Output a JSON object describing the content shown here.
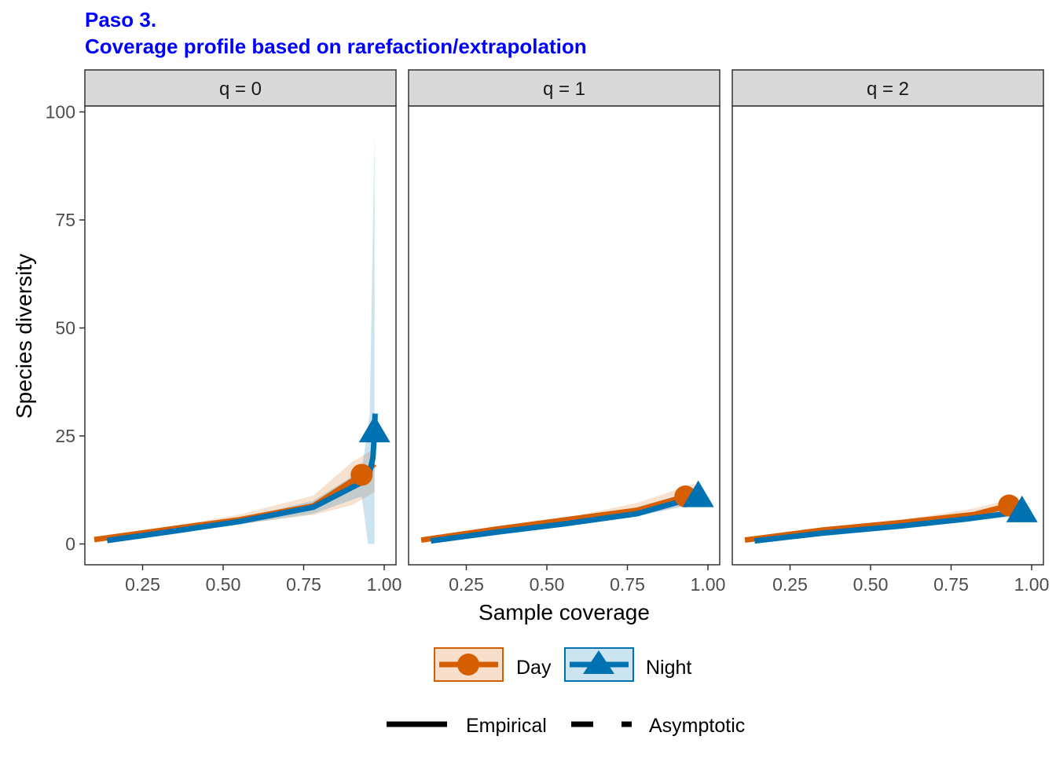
{
  "title_line1": "Paso 3.",
  "title_line2": "Coverage profile based on rarefaction/extrapolation",
  "colors": {
    "title": "#0000FF",
    "day": "#D55E00",
    "night": "#0072B2",
    "strip_fill": "#D9D9D9"
  },
  "chart_data": {
    "type": "line",
    "xlabel": "Sample coverage",
    "ylabel": "Species diversity",
    "xlim": [
      0.1,
      1.0
    ],
    "ylim": [
      0,
      100
    ],
    "x_ticks": [
      "0.25",
      "0.50",
      "0.75",
      "1.00"
    ],
    "y_ticks": [
      "0",
      "25",
      "50",
      "75",
      "100"
    ],
    "legend_position": "bottom",
    "grid": false,
    "legend": {
      "series": [
        "Day",
        "Night"
      ],
      "methods": [
        "Empirical",
        "Asymptotic"
      ]
    },
    "facets": [
      {
        "strip": "q = 0",
        "series": [
          {
            "name": "Day",
            "interpolated": [
              [
                0.1,
                1
              ],
              [
                0.35,
                3.6
              ],
              [
                0.55,
                5.6
              ],
              [
                0.78,
                8.8
              ],
              [
                0.93,
                16
              ]
            ],
            "extrapolated": [
              [
                0.93,
                16
              ],
              [
                0.97,
                18.5
              ]
            ],
            "ci_lower": [
              [
                0.1,
                0.6
              ],
              [
                0.35,
                3.0
              ],
              [
                0.55,
                4.6
              ],
              [
                0.78,
                6.7
              ],
              [
                0.9,
                9
              ],
              [
                0.97,
                12
              ]
            ],
            "ci_upper": [
              [
                0.1,
                1.4
              ],
              [
                0.35,
                4.2
              ],
              [
                0.55,
                6.8
              ],
              [
                0.78,
                11.2
              ],
              [
                0.9,
                19
              ],
              [
                0.97,
                22
              ]
            ],
            "observed": [
              0.93,
              16
            ],
            "marker": "circle"
          },
          {
            "name": "Night",
            "interpolated": [
              [
                0.14,
                0.8
              ],
              [
                0.35,
                3.0
              ],
              [
                0.55,
                5.2
              ],
              [
                0.78,
                8.5
              ],
              [
                0.95,
                15
              ],
              [
                0.965,
                20
              ],
              [
                0.97,
                26
              ]
            ],
            "extrapolated": [
              [
                0.97,
                26
              ],
              [
                0.972,
                31
              ]
            ],
            "ci_lower": [
              [
                0.14,
                0.5
              ],
              [
                0.55,
                4.5
              ],
              [
                0.78,
                7.0
              ],
              [
                0.93,
                11
              ],
              [
                0.95,
                0
              ],
              [
                0.97,
                0
              ]
            ],
            "ci_upper": [
              [
                0.14,
                1.1
              ],
              [
                0.55,
                5.9
              ],
              [
                0.78,
                10
              ],
              [
                0.93,
                17
              ],
              [
                0.955,
                30
              ],
              [
                0.97,
                95
              ]
            ],
            "observed": [
              0.97,
              26
            ],
            "marker": "triangle"
          }
        ]
      },
      {
        "strip": "q = 1",
        "series": [
          {
            "name": "Day",
            "interpolated": [
              [
                0.11,
                0.9
              ],
              [
                0.35,
                3.5
              ],
              [
                0.6,
                6.0
              ],
              [
                0.78,
                7.8
              ],
              [
                0.93,
                11
              ]
            ],
            "extrapolated": [
              [
                0.93,
                11
              ],
              [
                0.96,
                12
              ]
            ],
            "ci_lower": [
              [
                0.11,
                0.6
              ],
              [
                0.6,
                5.4
              ],
              [
                0.78,
                6.5
              ],
              [
                0.96,
                9.5
              ]
            ],
            "ci_upper": [
              [
                0.11,
                1.2
              ],
              [
                0.6,
                6.7
              ],
              [
                0.78,
                9.5
              ],
              [
                0.96,
                14
              ]
            ],
            "observed": [
              0.93,
              11
            ],
            "marker": "circle"
          },
          {
            "name": "Night",
            "interpolated": [
              [
                0.14,
                0.7
              ],
              [
                0.35,
                2.8
              ],
              [
                0.55,
                4.6
              ],
              [
                0.78,
                7.0
              ],
              [
                0.97,
                11
              ]
            ],
            "extrapolated": [
              [
                0.97,
                11
              ],
              [
                0.98,
                11.5
              ]
            ],
            "ci_lower": [
              [
                0.14,
                0.5
              ],
              [
                0.78,
                6.4
              ],
              [
                0.98,
                9.5
              ]
            ],
            "ci_upper": [
              [
                0.14,
                0.9
              ],
              [
                0.78,
                7.6
              ],
              [
                0.98,
                13
              ]
            ],
            "observed": [
              0.97,
              11
            ],
            "marker": "triangle"
          }
        ]
      },
      {
        "strip": "q = 2",
        "series": [
          {
            "name": "Day",
            "interpolated": [
              [
                0.11,
                0.9
              ],
              [
                0.35,
                3.2
              ],
              [
                0.6,
                5.0
              ],
              [
                0.82,
                6.8
              ],
              [
                0.93,
                8.9
              ]
            ],
            "extrapolated": [
              [
                0.93,
                8.9
              ],
              [
                0.96,
                9.2
              ]
            ],
            "ci_lower": [
              [
                0.11,
                0.6
              ],
              [
                0.6,
                4.4
              ],
              [
                0.82,
                5.9
              ],
              [
                0.96,
                7.6
              ]
            ],
            "ci_upper": [
              [
                0.11,
                1.2
              ],
              [
                0.6,
                5.6
              ],
              [
                0.82,
                8.2
              ],
              [
                0.96,
                10.8
              ]
            ],
            "observed": [
              0.93,
              8.9
            ],
            "marker": "circle"
          },
          {
            "name": "Night",
            "interpolated": [
              [
                0.14,
                0.7
              ],
              [
                0.35,
                2.5
              ],
              [
                0.6,
                4.2
              ],
              [
                0.8,
                5.8
              ],
              [
                0.97,
                7.5
              ]
            ],
            "extrapolated": [
              [
                0.97,
                7.5
              ],
              [
                0.985,
                7.8
              ]
            ],
            "ci_lower": [
              [
                0.14,
                0.5
              ],
              [
                0.8,
                5.3
              ],
              [
                0.985,
                6.6
              ]
            ],
            "ci_upper": [
              [
                0.14,
                0.9
              ],
              [
                0.8,
                6.4
              ],
              [
                0.985,
                9.0
              ]
            ],
            "observed": [
              0.97,
              7.5
            ],
            "marker": "triangle"
          }
        ]
      }
    ]
  }
}
